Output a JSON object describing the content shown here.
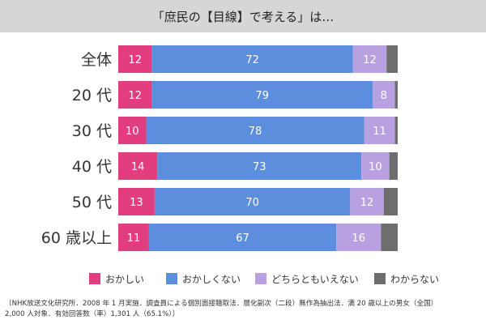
{
  "title": "「庶民の【目線】で考える」は…",
  "chart_data": {
    "type": "bar",
    "stacked": true,
    "orientation": "horizontal",
    "categories": [
      "全体",
      "20 代",
      "30 代",
      "40 代",
      "50 代",
      "60 歳以上"
    ],
    "series": [
      {
        "name": "おかしい",
        "color": "#e23d7f",
        "values": [
          12,
          12,
          10,
          14,
          13,
          11
        ]
      },
      {
        "name": "おかしくない",
        "color": "#5b8fde",
        "values": [
          72,
          79,
          78,
          73,
          70,
          67
        ]
      },
      {
        "name": "どちらともいえない",
        "color": "#b8a1e0",
        "values": [
          12,
          8,
          11,
          10,
          12,
          16
        ]
      },
      {
        "name": "わからない",
        "color": "#6e6e6e",
        "values": [
          4,
          1,
          1,
          3,
          5,
          6
        ]
      }
    ],
    "data_labels": [
      [
        "12",
        "12",
        "10",
        "14",
        "13",
        "11"
      ],
      [
        "72",
        "79",
        "78",
        "73",
        "70",
        "67"
      ],
      [
        "12",
        "8",
        "11",
        "10",
        "12",
        "16"
      ],
      [
        "",
        "",
        "",
        "",
        "",
        ""
      ]
    ],
    "legend_position": "bottom",
    "grid": false
  },
  "footnote": {
    "line1": "〔NHK放送文化研究所．2008 年 1 月実施．調査員による個別面接聴取法．層化副次（二段）無作為抽出法．満 20 歳以上の男女（全国）",
    "line2": "2,000 人対象．有効回答数（率）1,301 人（65.1%）〕"
  }
}
